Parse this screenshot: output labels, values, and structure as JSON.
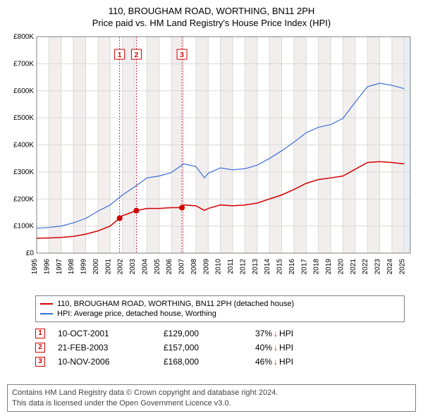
{
  "title_line1": "110, BROUGHAM ROAD, WORTHING, BN11 2PH",
  "title_line2": "Price paid vs. HM Land Registry's House Price Index (HPI)",
  "chart": {
    "type": "line",
    "background_color": "#ffffff",
    "border_color": "#808080",
    "grid_color": "#d9d9d9",
    "band_color": "#f2eeee",
    "future_band_color": "#e8eef5",
    "ylabel_prefix": "£",
    "ylim": [
      0,
      800000
    ],
    "ytick_step": 100000,
    "yticks_labels": [
      "£0",
      "£100K",
      "£200K",
      "£300K",
      "£400K",
      "£500K",
      "£600K",
      "£700K",
      "£800K"
    ],
    "xlim": [
      1995,
      2025.5
    ],
    "xticks": [
      1995,
      1996,
      1997,
      1998,
      1999,
      2000,
      2001,
      2002,
      2003,
      2004,
      2005,
      2006,
      2007,
      2008,
      2009,
      2010,
      2011,
      2012,
      2013,
      2014,
      2015,
      2016,
      2017,
      2018,
      2019,
      2020,
      2021,
      2022,
      2023,
      2024,
      2025
    ],
    "label_fontsize": 10,
    "sale_line_color": "#d81e4f",
    "sale_line_dash": "2,2",
    "series": [
      {
        "id": "property",
        "label": "110, BROUGHAM ROAD, WORTHING, BN11 2PH (detached house)",
        "color": "#d30000",
        "line_width": 1.5,
        "points": [
          [
            1995,
            55000
          ],
          [
            1996,
            56000
          ],
          [
            1997,
            58000
          ],
          [
            1998,
            62000
          ],
          [
            1999,
            70000
          ],
          [
            2000,
            82000
          ],
          [
            2001,
            100000
          ],
          [
            2001.77,
            129000
          ],
          [
            2002,
            138000
          ],
          [
            2003.14,
            157000
          ],
          [
            2004,
            165000
          ],
          [
            2005,
            165000
          ],
          [
            2006,
            168000
          ],
          [
            2006.86,
            168000
          ],
          [
            2007,
            178000
          ],
          [
            2008,
            175000
          ],
          [
            2008.7,
            158000
          ],
          [
            2009,
            165000
          ],
          [
            2010,
            178000
          ],
          [
            2011,
            175000
          ],
          [
            2012,
            178000
          ],
          [
            2013,
            185000
          ],
          [
            2014,
            200000
          ],
          [
            2015,
            215000
          ],
          [
            2016,
            235000
          ],
          [
            2017,
            258000
          ],
          [
            2018,
            272000
          ],
          [
            2019,
            278000
          ],
          [
            2020,
            285000
          ],
          [
            2021,
            310000
          ],
          [
            2022,
            335000
          ],
          [
            2023,
            338000
          ],
          [
            2024,
            335000
          ],
          [
            2025,
            330000
          ]
        ],
        "markers": [
          {
            "x": 2001.77,
            "y": 129000
          },
          {
            "x": 2003.14,
            "y": 157000
          },
          {
            "x": 2006.86,
            "y": 168000
          }
        ],
        "marker_color": "#d30000",
        "marker_size": 4
      },
      {
        "id": "hpi",
        "label": "HPI: Average price, detached house, Worthing",
        "color": "#3a6fd8",
        "line_width": 1.2,
        "points": [
          [
            1995,
            92000
          ],
          [
            1996,
            95000
          ],
          [
            1997,
            100000
          ],
          [
            1998,
            112000
          ],
          [
            1999,
            128000
          ],
          [
            2000,
            155000
          ],
          [
            2001,
            178000
          ],
          [
            2002,
            215000
          ],
          [
            2003,
            245000
          ],
          [
            2004,
            278000
          ],
          [
            2005,
            285000
          ],
          [
            2006,
            298000
          ],
          [
            2007,
            330000
          ],
          [
            2008,
            320000
          ],
          [
            2008.7,
            278000
          ],
          [
            2009,
            295000
          ],
          [
            2010,
            315000
          ],
          [
            2011,
            308000
          ],
          [
            2012,
            312000
          ],
          [
            2013,
            325000
          ],
          [
            2014,
            350000
          ],
          [
            2015,
            378000
          ],
          [
            2016,
            410000
          ],
          [
            2017,
            445000
          ],
          [
            2018,
            465000
          ],
          [
            2019,
            475000
          ],
          [
            2020,
            498000
          ],
          [
            2021,
            558000
          ],
          [
            2022,
            615000
          ],
          [
            2023,
            628000
          ],
          [
            2024,
            620000
          ],
          [
            2025,
            608000
          ]
        ]
      }
    ],
    "sale_markers": [
      {
        "n": "1",
        "x": 2001.77
      },
      {
        "n": "2",
        "x": 2003.14
      },
      {
        "n": "3",
        "x": 2006.86
      }
    ],
    "future_from": 2025
  },
  "legend": {
    "border_color": "#808080",
    "items": [
      {
        "color": "#d30000",
        "label": "110, BROUGHAM ROAD, WORTHING, BN11 2PH (detached house)"
      },
      {
        "color": "#3a6fd8",
        "label": "HPI: Average price, detached house, Worthing"
      }
    ]
  },
  "sales": [
    {
      "n": "1",
      "date": "10-OCT-2001",
      "price": "£129,000",
      "pct": "37%",
      "arrow": "↓",
      "suffix": "HPI"
    },
    {
      "n": "2",
      "date": "21-FEB-2003",
      "price": "£157,000",
      "pct": "40%",
      "arrow": "↓",
      "suffix": "HPI"
    },
    {
      "n": "3",
      "date": "10-NOV-2006",
      "price": "£168,000",
      "pct": "46%",
      "arrow": "↓",
      "suffix": "HPI"
    }
  ],
  "sale_badge_color": "#d30000",
  "arrow_color": "#d30000",
  "footer": {
    "border_color": "#808080",
    "line1": "Contains HM Land Registry data © Crown copyright and database right 2024.",
    "line2": "This data is licensed under the Open Government Licence v3.0."
  }
}
